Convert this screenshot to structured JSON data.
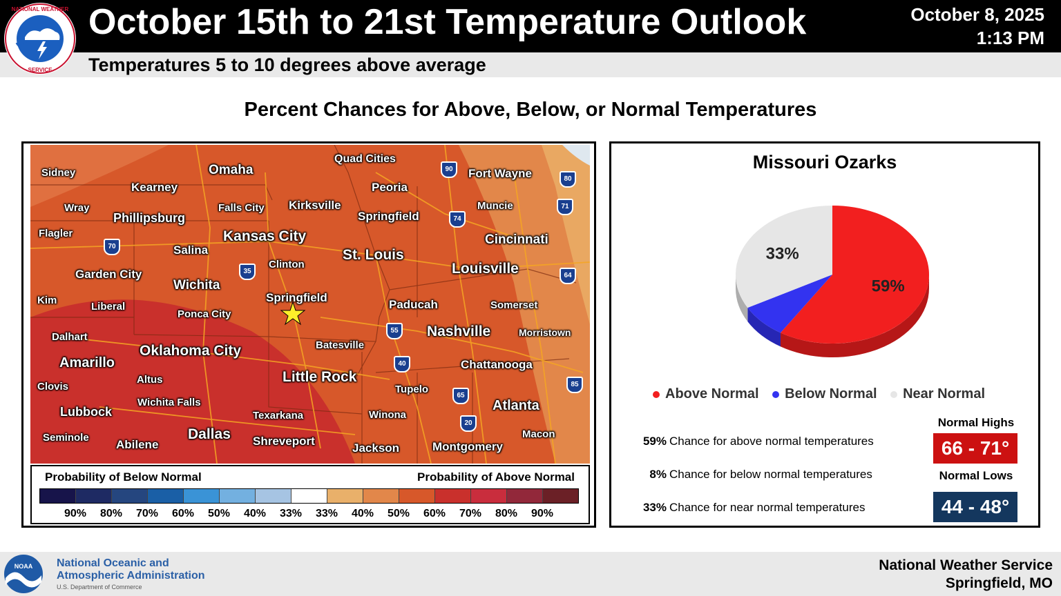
{
  "header": {
    "title": "October 15th to 21st Temperature Outlook",
    "subtitle": "Temperatures 5 to 10 degrees above average",
    "date": "October 8, 2025",
    "time": "1:13 PM",
    "logo_text": "NATIONAL WEATHER SERVICE"
  },
  "heading": "Percent Chances for Above, Below, or Normal Temperatures",
  "map": {
    "cities": [
      "Sidney",
      "Omaha",
      "Quad Cities",
      "Fort Wayne",
      "Kearney",
      "Peoria",
      "Wray",
      "Phillipsburg",
      "Falls City",
      "Kirksville",
      "Springfield",
      "Muncie",
      "Flagler",
      "Kansas City",
      "Cincinnati",
      "Salina",
      "Clinton",
      "St. Louis",
      "Louisville",
      "Garden City",
      "Wichita",
      "Kim",
      "Liberal",
      "Springfield",
      "Paducah",
      "Somerset",
      "Ponca City",
      "Dalhart",
      "Batesville",
      "Nashville",
      "Morristown",
      "Amarillo",
      "Oklahoma City",
      "Chattanooga",
      "Altus",
      "Little Rock",
      "Clovis",
      "Wichita Falls",
      "Tupelo",
      "Lubbock",
      "Atlanta",
      "Texarkana",
      "Winona",
      "Seminole",
      "Abilene",
      "Dallas",
      "Shreveport",
      "Jackson",
      "Montgomery",
      "Macon"
    ],
    "interstates": [
      "90",
      "80",
      "71",
      "74",
      "70",
      "35",
      "64",
      "55",
      "40",
      "65",
      "20",
      "85"
    ],
    "colors": {
      "above_50": "#d7582a",
      "above_60": "#c9302c",
      "above_40": "#e2874a",
      "lake": "#dfe8ef",
      "roads": "#f5a623"
    }
  },
  "legend": {
    "below_label": "Probability of Below Normal",
    "above_label": "Probability of Above Normal",
    "colors": [
      "#17144a",
      "#1e2a63",
      "#25467f",
      "#1a5fa6",
      "#3a93d6",
      "#73b0e0",
      "#a6c4e3",
      "#ffffff",
      "#e9b06a",
      "#e2874a",
      "#d7582a",
      "#c9302c",
      "#c92d3d",
      "#92283a",
      "#6b2026"
    ],
    "ticks": [
      "90%",
      "80%",
      "70%",
      "60%",
      "50%",
      "40%",
      "33%",
      "33%",
      "40%",
      "50%",
      "60%",
      "70%",
      "80%",
      "90%"
    ]
  },
  "pie": {
    "region": "Missouri Ozarks",
    "slices": [
      {
        "name": "Above Normal",
        "value": 59,
        "label": "59%",
        "color": "#f21f1f"
      },
      {
        "name": "Below Normal",
        "value": 8,
        "label": "",
        "color": "#3333f0"
      },
      {
        "name": "Near Normal",
        "value": 33,
        "label": "33%",
        "color": "#e6e6e6"
      }
    ],
    "legend": [
      "Above Normal",
      "Below Normal",
      "Near Normal"
    ]
  },
  "stats": [
    {
      "pct": "59%",
      "text": "Chance for above normal temperatures"
    },
    {
      "pct": "8%",
      "text": "Chance for below normal temperatures"
    },
    {
      "pct": "33%",
      "text": "Chance for near normal temperatures"
    }
  ],
  "normals": {
    "highs_label": "Normal Highs",
    "highs": "66 - 71°",
    "highs_color": "#cc1111",
    "lows_label": "Normal Lows",
    "lows": "44 - 48°",
    "lows_color": "#14375e"
  },
  "footer": {
    "noaa_line1": "National Oceanic and",
    "noaa_line2": "Atmospheric Administration",
    "noaa_line3": "U.S. Department of Commerce",
    "noaa_logo_text": "NOAA",
    "nws_line1": "National Weather Service",
    "nws_line2": "Springfield, MO"
  }
}
